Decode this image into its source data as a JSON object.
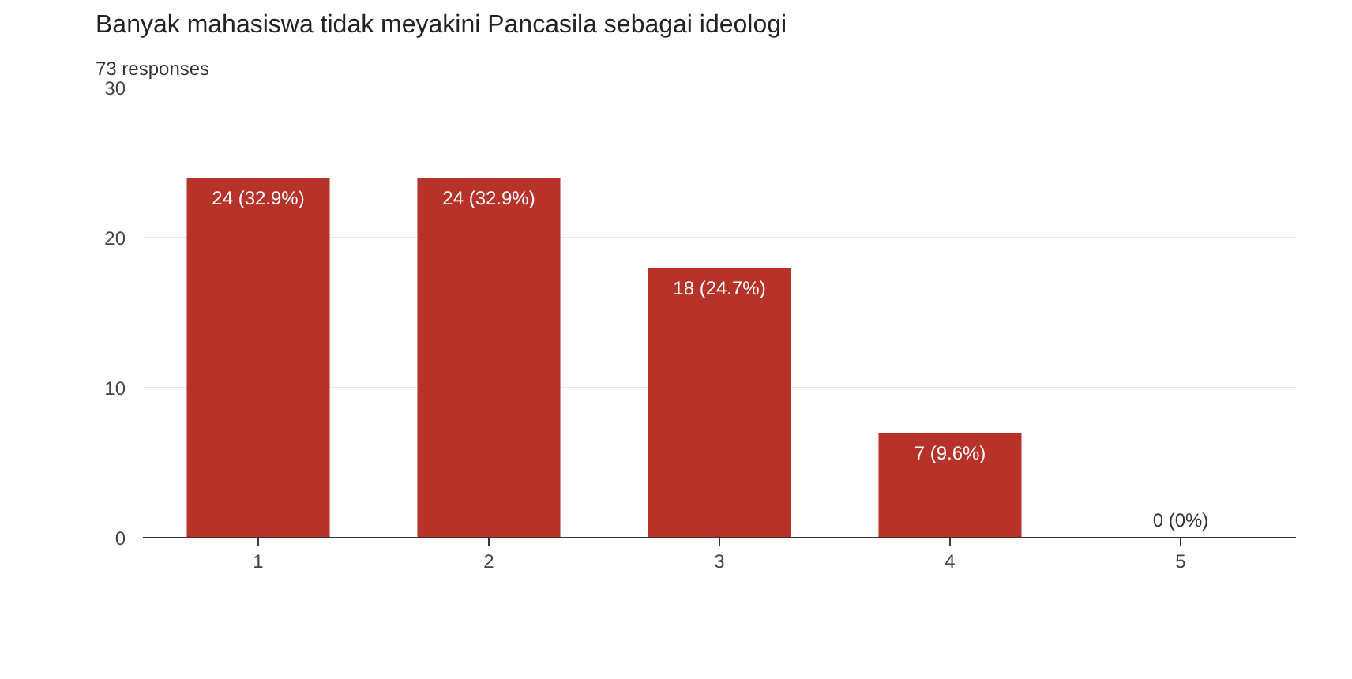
{
  "chart_data": {
    "type": "bar",
    "title": "Banyak mahasiswa tidak meyakini Pancasila sebagai ideologi",
    "subtitle": "73 responses",
    "categories": [
      "1",
      "2",
      "3",
      "4",
      "5"
    ],
    "values": [
      24,
      24,
      18,
      7,
      0
    ],
    "value_labels": [
      "24 (32.9%)",
      "24 (32.9%)",
      "18 (24.7%)",
      "7 (9.6%)",
      "0 (0%)"
    ],
    "color": "#b7332a",
    "ylim": [
      0,
      30
    ],
    "yticks": [
      0,
      10,
      20,
      30
    ],
    "grid": "y"
  }
}
